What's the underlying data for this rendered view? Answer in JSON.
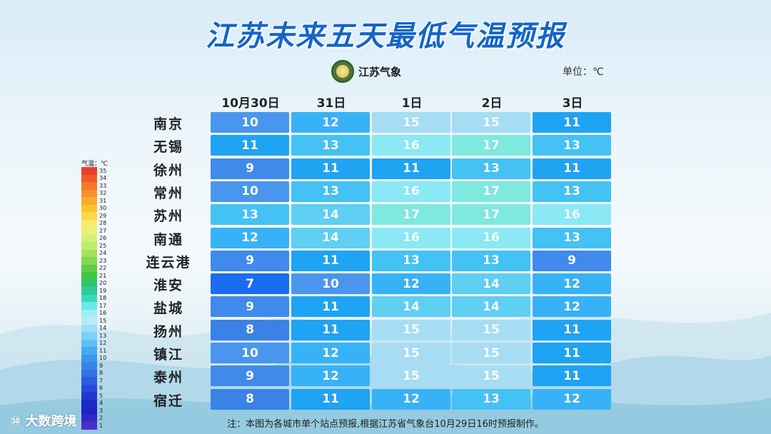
{
  "title": "江苏未来五天最低气温预报",
  "logo_text": "江苏气象",
  "unit": "单位：℃",
  "note": "注：本图为各城市单个站点预报,根据江苏省气象台10月29日16时预报制作。",
  "watermark": "大数跨境",
  "legend_title": "气温：℃",
  "colors": {
    "7": "#1a6cf0",
    "8": "#3b82e6",
    "9": "#3f8aea",
    "10": "#4a96ee",
    "11": "#1fa3f3",
    "12": "#38b2f6",
    "13": "#44c2f4",
    "14": "#5fcff3",
    "15": "#a6ddf5",
    "16": "#8ae9f5",
    "17": "#7fe9df"
  },
  "chart_data": {
    "type": "table",
    "title": "江苏未来五天最低气温预报",
    "unit": "℃",
    "dates": [
      "10月30日",
      "31日",
      "1日",
      "2日",
      "3日"
    ],
    "cities": [
      "南京",
      "无锡",
      "徐州",
      "常州",
      "苏州",
      "南通",
      "连云港",
      "淮安",
      "盐城",
      "扬州",
      "镇江",
      "泰州",
      "宿迁"
    ],
    "values": [
      [
        10,
        12,
        15,
        15,
        11
      ],
      [
        11,
        13,
        16,
        17,
        13
      ],
      [
        9,
        11,
        11,
        13,
        11
      ],
      [
        10,
        13,
        16,
        17,
        13
      ],
      [
        13,
        14,
        17,
        17,
        16
      ],
      [
        12,
        14,
        16,
        16,
        13
      ],
      [
        9,
        11,
        13,
        13,
        9
      ],
      [
        7,
        10,
        12,
        14,
        12
      ],
      [
        9,
        11,
        14,
        14,
        12
      ],
      [
        8,
        11,
        15,
        15,
        11
      ],
      [
        10,
        12,
        15,
        15,
        11
      ],
      [
        9,
        12,
        15,
        15,
        11
      ],
      [
        8,
        11,
        12,
        13,
        12
      ]
    ],
    "legend": {
      "labels": [
        "35",
        "34",
        "33",
        "32",
        "31",
        "30",
        "29",
        "28",
        "27",
        "26",
        "25",
        "24",
        "23",
        "22",
        "21",
        "20",
        "19",
        "18",
        "17",
        "16",
        "15",
        "14",
        "13",
        "12",
        "11",
        "10",
        "9",
        "8",
        "7",
        "6",
        "5",
        "4",
        "3",
        "2",
        "1"
      ],
      "colors": [
        "#e8402a",
        "#f05a2a",
        "#f4782b",
        "#f78f2c",
        "#fbab2b",
        "#fcc22c",
        "#fbd84a",
        "#f6ec6a",
        "#eaf27c",
        "#d5f07a",
        "#bfec6a",
        "#a4e25c",
        "#84d84f",
        "#5fcd45",
        "#3ec845",
        "#2fc46c",
        "#2ccb97",
        "#36d8c2",
        "#6be8e8",
        "#9ef0f0",
        "#b8ecf6",
        "#9ae0f8",
        "#7dd0f7",
        "#5fbef6",
        "#46aaf2",
        "#3c96ec",
        "#3a84e6",
        "#3570e2",
        "#2c5de0",
        "#2549da",
        "#1e38d0",
        "#1c2ac8",
        "#2222c0",
        "#3328c4",
        "#4b30c8"
      ]
    }
  }
}
